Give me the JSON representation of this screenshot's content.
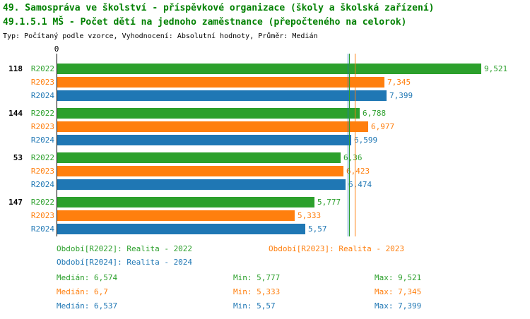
{
  "header": {
    "line1": "49. Samospráva ve školství - příspěvkové organizace (školy a školská zařízení)",
    "line2": "49.1.5.1 MŠ - Počet dětí na jednoho zaměstnance (přepočteného na celorok)",
    "meta": "Typ: Počítaný podle vzorce, Vyhodnocení: Absolutní hodnoty, Průměr: Medián"
  },
  "colors": {
    "R2022": "#2ca02c",
    "R2023": "#ff7f0e",
    "R2024": "#1f77b4",
    "title": "#008000",
    "axis": "#000000"
  },
  "chart_data": {
    "type": "bar",
    "orientation": "horizontal",
    "value_axis_origin_label": "0",
    "xlim": [
      0,
      9.9
    ],
    "series_names": [
      "R2022",
      "R2023",
      "R2024"
    ],
    "groups": [
      {
        "label": "118",
        "bars": [
          {
            "series": "R2022",
            "value": 9.521,
            "display": "9,521"
          },
          {
            "series": "R2023",
            "value": 7.345,
            "display": "7,345"
          },
          {
            "series": "R2024",
            "value": 7.399,
            "display": "7,399"
          }
        ]
      },
      {
        "label": "144",
        "bars": [
          {
            "series": "R2022",
            "value": 6.788,
            "display": "6,788"
          },
          {
            "series": "R2023",
            "value": 6.977,
            "display": "6,977"
          },
          {
            "series": "R2024",
            "value": 6.599,
            "display": "6,599"
          }
        ]
      },
      {
        "label": "53",
        "bars": [
          {
            "series": "R2022",
            "value": 6.36,
            "display": "6,36"
          },
          {
            "series": "R2023",
            "value": 6.423,
            "display": "6,423"
          },
          {
            "series": "R2024",
            "value": 6.474,
            "display": "6,474"
          }
        ]
      },
      {
        "label": "147",
        "bars": [
          {
            "series": "R2022",
            "value": 5.777,
            "display": "5,777"
          },
          {
            "series": "R2023",
            "value": 5.333,
            "display": "5,333"
          },
          {
            "series": "R2024",
            "value": 5.57,
            "display": "5,57"
          }
        ]
      }
    ],
    "median_lines": [
      {
        "series": "R2022",
        "value": 6.574
      },
      {
        "series": "R2023",
        "value": 6.7
      },
      {
        "series": "R2024",
        "value": 6.537
      }
    ]
  },
  "legend": [
    {
      "series": "R2022",
      "label": "Období[R2022]: Realita - 2022"
    },
    {
      "series": "R2023",
      "label": "Období[R2023]: Realita - 2023"
    },
    {
      "series": "R2024",
      "label": "Období[R2024]: Realita - 2024"
    }
  ],
  "stats": [
    {
      "series": "R2022",
      "median": "Medián: 6,574",
      "min": "Min: 5,777",
      "max": "Max: 9,521"
    },
    {
      "series": "R2023",
      "median": "Medián: 6,7",
      "min": "Min: 5,333",
      "max": "Max: 7,345"
    },
    {
      "series": "R2024",
      "median": "Medián: 6,537",
      "min": "Min: 5,57",
      "max": "Max: 7,399"
    }
  ]
}
